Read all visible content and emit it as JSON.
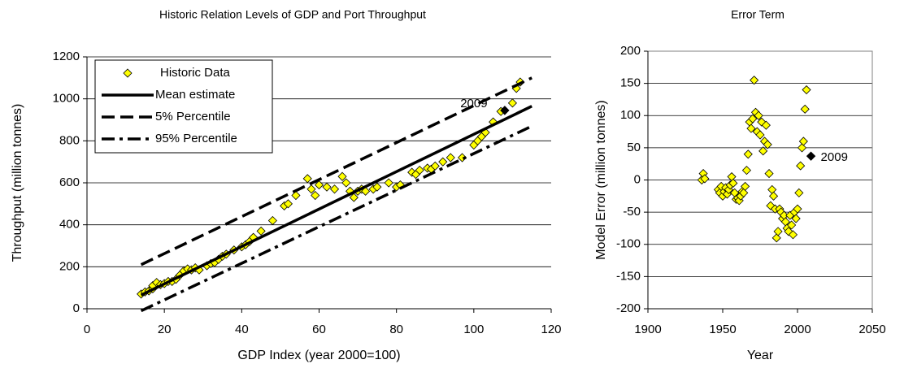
{
  "chart_data": [
    {
      "type": "scatter",
      "title": "Historic Relation Levels of GDP and Port Throughput",
      "x_label": "GDP Index (year 2000=100)",
      "y_label": "Throughput (million tonnes)",
      "xlim": [
        0,
        120
      ],
      "xticks": [
        0,
        20,
        40,
        60,
        80,
        100,
        120
      ],
      "ylim": [
        0,
        1200
      ],
      "yticks": [
        0,
        200,
        400,
        600,
        800,
        1000,
        1200
      ],
      "grid": true,
      "legend": "upper left",
      "series": [
        {
          "name": "Historic Data",
          "kind": "marker",
          "color": "#ffff00",
          "x": [
            14,
            15,
            16,
            17,
            17,
            18,
            19,
            20,
            21,
            22,
            23,
            24,
            25,
            26,
            27,
            28,
            29,
            31,
            32,
            33,
            34,
            35,
            36,
            38,
            40,
            41,
            42,
            43,
            45,
            48,
            51,
            52,
            54,
            57,
            58,
            59,
            60,
            62,
            64,
            66,
            67,
            68,
            69,
            70,
            71,
            72,
            74,
            75,
            78,
            80,
            81,
            84,
            85,
            86,
            88,
            89,
            90,
            92,
            94,
            97,
            100,
            101,
            102,
            103,
            105,
            107,
            110,
            111,
            112
          ],
          "y": [
            70,
            80,
            85,
            95,
            110,
            125,
            115,
            120,
            130,
            130,
            140,
            160,
            180,
            190,
            185,
            195,
            185,
            205,
            215,
            220,
            235,
            250,
            260,
            280,
            295,
            305,
            320,
            340,
            370,
            420,
            490,
            500,
            540,
            620,
            570,
            540,
            590,
            580,
            570,
            630,
            600,
            560,
            530,
            560,
            570,
            560,
            570,
            580,
            600,
            580,
            590,
            650,
            640,
            660,
            670,
            665,
            680,
            700,
            720,
            720,
            780,
            800,
            820,
            840,
            890,
            940,
            980,
            1050,
            1080
          ]
        },
        {
          "name": "Mean estimate",
          "kind": "line",
          "dash": "solid",
          "color": "#000000",
          "x": [
            14,
            115
          ],
          "y": [
            65,
            965
          ]
        },
        {
          "name": "5% Percentile",
          "kind": "line",
          "dash": "dashed",
          "color": "#000000",
          "x": [
            14,
            115
          ],
          "y": [
            210,
            1100
          ]
        },
        {
          "name": "95% Percentile",
          "kind": "line",
          "dash": "dashdot",
          "color": "#000000",
          "x": [
            14,
            115
          ],
          "y": [
            -10,
            870
          ]
        }
      ],
      "highlight": {
        "x": 108,
        "y": 945,
        "label": "2009",
        "color": "#000000"
      }
    },
    {
      "type": "scatter",
      "title": "Error Term",
      "x_label": "Year",
      "y_label": "Model Error (million tonnes)",
      "xlim": [
        1900,
        2050
      ],
      "xticks": [
        1900,
        1950,
        2000,
        2050
      ],
      "ylim": [
        -200,
        200
      ],
      "yticks": [
        -200,
        -150,
        -100,
        -50,
        0,
        50,
        100,
        150,
        200
      ],
      "grid": true,
      "legend": false,
      "series": [
        {
          "kind": "marker",
          "color": "#ffff00",
          "x": [
            1936,
            1937,
            1938,
            1947,
            1948,
            1949,
            1950,
            1951,
            1952,
            1953,
            1954,
            1955,
            1956,
            1957,
            1958,
            1959,
            1960,
            1961,
            1962,
            1963,
            1964,
            1965,
            1966,
            1967,
            1968,
            1969,
            1970,
            1971,
            1972,
            1973,
            1974,
            1975,
            1976,
            1977,
            1978,
            1979,
            1980,
            1981,
            1982,
            1983,
            1984,
            1985,
            1986,
            1987,
            1988,
            1989,
            1990,
            1991,
            1992,
            1993,
            1994,
            1995,
            1996,
            1997,
            1998,
            1999,
            2000,
            2001,
            2002,
            2003,
            2004,
            2005,
            2006
          ],
          "y": [
            0,
            10,
            2,
            -15,
            -20,
            -10,
            -25,
            -18,
            -12,
            -22,
            -15,
            -8,
            5,
            -5,
            -20,
            -30,
            -28,
            -32,
            -25,
            -18,
            -20,
            -10,
            15,
            40,
            90,
            80,
            95,
            155,
            105,
            75,
            100,
            70,
            90,
            45,
            60,
            85,
            55,
            10,
            -40,
            -15,
            -25,
            -45,
            -90,
            -80,
            -45,
            -50,
            -60,
            -55,
            -65,
            -75,
            -80,
            -55,
            -70,
            -85,
            -50,
            -60,
            -45,
            -20,
            22,
            50,
            60,
            110,
            140
          ]
        }
      ],
      "highlight": {
        "x": 2009,
        "y": 37,
        "label": "2009",
        "color": "#000000"
      }
    }
  ]
}
